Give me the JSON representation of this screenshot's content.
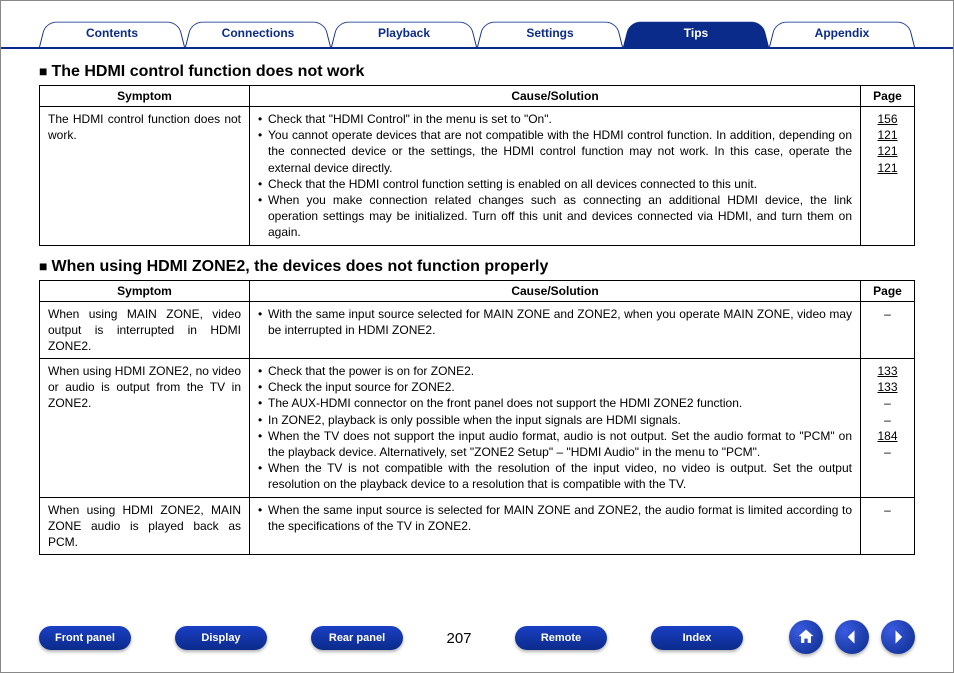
{
  "colors": {
    "brand": "#0b2b8a",
    "text": "#000000",
    "bg": "#ffffff"
  },
  "tabs": [
    {
      "label": "Contents",
      "active": false
    },
    {
      "label": "Connections",
      "active": false
    },
    {
      "label": "Playback",
      "active": false
    },
    {
      "label": "Settings",
      "active": false
    },
    {
      "label": "Tips",
      "active": true
    },
    {
      "label": "Appendix",
      "active": false
    }
  ],
  "sections": [
    {
      "title": "The HDMI control function does not work",
      "headers": {
        "symptom": "Symptom",
        "cause": "Cause/Solution",
        "page": "Page"
      },
      "rows": [
        {
          "symptom": "The HDMI control function does not work.",
          "causes": [
            {
              "text": "Check that \"HDMI Control\" in the menu is set to \"On\".",
              "page": "156"
            },
            {
              "text": "You cannot operate devices that are not compatible with the HDMI control function. In addition, depending on the connected device or the settings, the HDMI control function may not work. In this case, operate the external device directly.",
              "page": "121"
            },
            {
              "text": "Check that the HDMI control function setting is enabled on all devices connected to this unit.",
              "page": "121"
            },
            {
              "text": "When you make connection related changes such as connecting an additional HDMI device, the link operation settings may be initialized. Turn off this unit and devices connected via HDMI, and turn them on again.",
              "page": "121"
            }
          ]
        }
      ]
    },
    {
      "title": "When using HDMI ZONE2, the devices does not function properly",
      "headers": {
        "symptom": "Symptom",
        "cause": "Cause/Solution",
        "page": "Page"
      },
      "rows": [
        {
          "symptom": "When using MAIN ZONE, video output is interrupted in HDMI ZONE2.",
          "causes": [
            {
              "text": "With the same input source selected for MAIN ZONE and ZONE2, when you operate MAIN ZONE, video may be interrupted in HDMI ZONE2.",
              "page": "–"
            }
          ]
        },
        {
          "symptom": "When using HDMI ZONE2, no video or audio is output from the TV in ZONE2.",
          "causes": [
            {
              "text": "Check that the power is on for ZONE2.",
              "page": "133"
            },
            {
              "text": "Check the input source for ZONE2.",
              "page": "133"
            },
            {
              "text": "The AUX-HDMI connector on the front panel does not support the HDMI ZONE2 function.",
              "page": "–"
            },
            {
              "text": "In ZONE2, playback is only possible when the input signals are HDMI signals.",
              "page": "–"
            },
            {
              "text": "When the TV does not support the input audio format, audio is not output. Set the audio format to \"PCM\" on the playback device. Alternatively, set \"ZONE2 Setup\" – \"HDMI Audio\" in the menu to \"PCM\".",
              "page": "184"
            },
            {
              "text": "When the TV is not compatible with the resolution of the input video, no video is output. Set the output resolution on the playback device to a resolution that is compatible with the TV.",
              "page": "–"
            }
          ]
        },
        {
          "symptom": "When using HDMI ZONE2, MAIN ZONE audio is played back as PCM.",
          "causes": [
            {
              "text": "When the same input source is selected for MAIN ZONE and ZONE2, the audio format is limited according to the specifications of the TV in ZONE2.",
              "page": "–"
            }
          ]
        }
      ]
    }
  ],
  "footer": {
    "buttons": [
      "Front panel",
      "Display",
      "Rear panel",
      "Remote",
      "Index"
    ],
    "page_number": "207"
  }
}
